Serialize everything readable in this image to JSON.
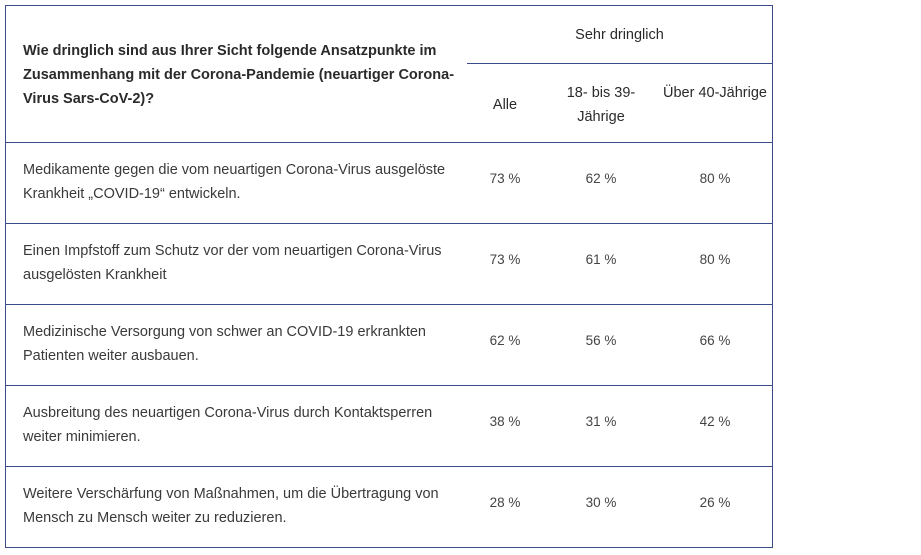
{
  "header": {
    "question": "Wie dringlich sind aus Ihrer Sicht folgende Ansatzpunkte im Zusammenhang mit der Corona-Pandemie (neuartiger Corona-Virus Sars-CoV-2)?",
    "group_title": "Sehr dringlich",
    "columns": [
      "Alle",
      "18- bis 39-Jährige",
      "Über 40-Jährige"
    ]
  },
  "rows": [
    {
      "label": "Medikamente gegen die vom neuartigen Corona-Virus ausgelöste Krankheit „COVID-19“ entwickeln.",
      "all": "73 %",
      "young": "62 %",
      "old": "80 %"
    },
    {
      "label": "Einen Impfstoff zum Schutz vor der vom neuartigen Corona-Virus ausgelösten Krankheit",
      "all": "73 %",
      "young": "61 %",
      "old": "80 %"
    },
    {
      "label": "Medizinische Versorgung von schwer an COVID-19 erkrankten Patienten weiter ausbauen.",
      "all": "62 %",
      "young": "56 %",
      "old": "66 %"
    },
    {
      "label": "Ausbreitung des neuartigen Corona-Virus durch Kontaktsperren weiter minimieren.",
      "all": "38 %",
      "young": "31 %",
      "old": "42 %"
    },
    {
      "label": "Weitere Verschärfung von Maßnahmen, um die Übertragung von Mensch zu Mensch weiter zu reduzieren.",
      "all": "28 %",
      "young": "30 %",
      "old": "26 %"
    }
  ]
}
